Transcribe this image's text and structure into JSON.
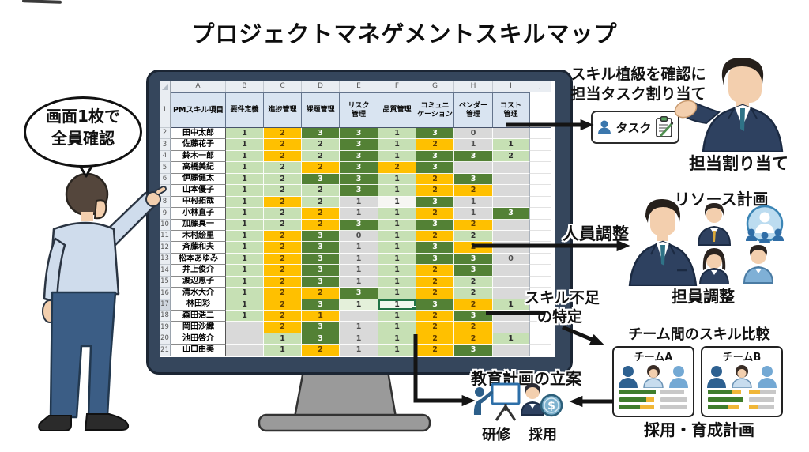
{
  "title": "プロジェクトマネゲメントスキルマップ",
  "speech_bubble": {
    "line1": "画面1枚で",
    "line2": "全員確認"
  },
  "spreadsheet": {
    "column_letters": [
      "A",
      "B",
      "C",
      "D",
      "E",
      "F",
      "G",
      "H",
      "I",
      "J"
    ],
    "header_row_number": "1",
    "headers": [
      "PMスキル項目",
      "要件定義",
      "進捗管理",
      "課題管理",
      "リスク\n管理",
      "品質管理",
      "コミュニ\nケーション",
      "ベンダー\n管理",
      "コスト\n管理"
    ],
    "rows": [
      {
        "n": "2",
        "name": "田中太郎",
        "cells": [
          [
            "1",
            "lg"
          ],
          [
            "2",
            "or"
          ],
          [
            "3",
            "dg"
          ],
          [
            "3",
            "dg"
          ],
          [
            "1",
            "lg"
          ],
          [
            "3",
            "dg"
          ],
          [
            "0",
            "gy"
          ],
          [
            "",
            "gy"
          ]
        ]
      },
      {
        "n": "3",
        "name": "佐藤花子",
        "cells": [
          [
            "1",
            "lg"
          ],
          [
            "2",
            "or"
          ],
          [
            "2",
            "lg"
          ],
          [
            "3",
            "dg"
          ],
          [
            "1",
            "lg"
          ],
          [
            "2",
            "or"
          ],
          [
            "1",
            "gy"
          ],
          [
            "1",
            "lg"
          ]
        ]
      },
      {
        "n": "4",
        "name": "鈴木一郎",
        "cells": [
          [
            "1",
            "lg"
          ],
          [
            "2",
            "or"
          ],
          [
            "2",
            "lg"
          ],
          [
            "3",
            "dg"
          ],
          [
            "1",
            "lg"
          ],
          [
            "3",
            "dg"
          ],
          [
            "3",
            "dg"
          ],
          [
            "2",
            "lg"
          ]
        ]
      },
      {
        "n": "5",
        "name": "高橋美紀",
        "cells": [
          [
            "1",
            "lg"
          ],
          [
            "2",
            "lg"
          ],
          [
            "2",
            "or"
          ],
          [
            "3",
            "dg"
          ],
          [
            "2",
            "or"
          ],
          [
            "3",
            "dg"
          ],
          [
            "",
            "gy"
          ],
          [
            "",
            "gy"
          ]
        ]
      },
      {
        "n": "6",
        "name": "伊藤健太",
        "cells": [
          [
            "1",
            "lg"
          ],
          [
            "2",
            "lg"
          ],
          [
            "3",
            "dg"
          ],
          [
            "3",
            "dg"
          ],
          [
            "1",
            "lg"
          ],
          [
            "2",
            "or"
          ],
          [
            "3",
            "dg"
          ],
          [
            "",
            "gy"
          ]
        ]
      },
      {
        "n": "7",
        "name": "山本優子",
        "cells": [
          [
            "1",
            "lg"
          ],
          [
            "2",
            "lg"
          ],
          [
            "2",
            "lg"
          ],
          [
            "3",
            "dg"
          ],
          [
            "1",
            "lg"
          ],
          [
            "2",
            "or"
          ],
          [
            "2",
            "or"
          ],
          [
            "",
            "gy"
          ]
        ]
      },
      {
        "n": "8",
        "name": "中村拓哉",
        "cells": [
          [
            "1",
            "lg"
          ],
          [
            "2",
            "or"
          ],
          [
            "2",
            "lg"
          ],
          [
            "1",
            "gy"
          ],
          [
            "1",
            "wh"
          ],
          [
            "3",
            "dg"
          ],
          [
            "1",
            "gy"
          ],
          [
            "",
            "gy"
          ]
        ]
      },
      {
        "n": "9",
        "name": "小林直子",
        "cells": [
          [
            "1",
            "lg"
          ],
          [
            "2",
            "lg"
          ],
          [
            "2",
            "or"
          ],
          [
            "1",
            "gy"
          ],
          [
            "1",
            "lg"
          ],
          [
            "2",
            "or"
          ],
          [
            "1",
            "gy"
          ],
          [
            "3",
            "dg"
          ]
        ]
      },
      {
        "n": "10",
        "name": "加藤真一",
        "cells": [
          [
            "1",
            "lg"
          ],
          [
            "2",
            "lg"
          ],
          [
            "2",
            "or"
          ],
          [
            "3",
            "dg"
          ],
          [
            "1",
            "lg"
          ],
          [
            "3",
            "dg"
          ],
          [
            "2",
            "or"
          ],
          [
            "",
            "gy"
          ]
        ]
      },
      {
        "n": "11",
        "name": "木村絵里",
        "cells": [
          [
            "1",
            "lg"
          ],
          [
            "2",
            "or"
          ],
          [
            "3",
            "dg"
          ],
          [
            "0",
            "gy"
          ],
          [
            "1",
            "lg"
          ],
          [
            "2",
            "or"
          ],
          [
            "2",
            "lg"
          ],
          [
            "",
            "gy"
          ]
        ]
      },
      {
        "n": "12",
        "name": "斉藤和夫",
        "cells": [
          [
            "1",
            "lg"
          ],
          [
            "2",
            "or"
          ],
          [
            "3",
            "dg"
          ],
          [
            "1",
            "gy"
          ],
          [
            "1",
            "lg"
          ],
          [
            "3",
            "dg"
          ],
          [
            "2",
            "or"
          ],
          [
            "",
            "gy"
          ]
        ]
      },
      {
        "n": "13",
        "name": "松本あゆみ",
        "cells": [
          [
            "1",
            "lg"
          ],
          [
            "2",
            "or"
          ],
          [
            "3",
            "dg"
          ],
          [
            "1",
            "gy"
          ],
          [
            "1",
            "lg"
          ],
          [
            "3",
            "dg"
          ],
          [
            "3",
            "dg"
          ],
          [
            "0",
            "gy"
          ]
        ]
      },
      {
        "n": "14",
        "name": "井上俊介",
        "cells": [
          [
            "1",
            "lg"
          ],
          [
            "2",
            "or"
          ],
          [
            "3",
            "dg"
          ],
          [
            "1",
            "gy"
          ],
          [
            "1",
            "lg"
          ],
          [
            "2",
            "or"
          ],
          [
            "3",
            "dg"
          ],
          [
            "",
            "gy"
          ]
        ]
      },
      {
        "n": "15",
        "name": "渡辺恵子",
        "cells": [
          [
            "1",
            "lg"
          ],
          [
            "2",
            "or"
          ],
          [
            "3",
            "dg"
          ],
          [
            "1",
            "gy"
          ],
          [
            "1",
            "lg"
          ],
          [
            "2",
            "or"
          ],
          [
            "2",
            "lg"
          ],
          [
            "",
            "gy"
          ]
        ]
      },
      {
        "n": "16",
        "name": "清水大介",
        "cells": [
          [
            "1",
            "lg"
          ],
          [
            "2",
            "or"
          ],
          [
            "2",
            "or"
          ],
          [
            "3",
            "dg"
          ],
          [
            "1",
            "lg"
          ],
          [
            "2",
            "or"
          ],
          [
            "2",
            "lg"
          ],
          [
            "",
            "gy"
          ]
        ]
      },
      {
        "n": "17",
        "name": "林田彩",
        "cells": [
          [
            "1",
            "lg"
          ],
          [
            "2",
            "or"
          ],
          [
            "3",
            "dg"
          ],
          [
            "1",
            "pl"
          ],
          [
            "1",
            "sel"
          ],
          [
            "3",
            "dg"
          ],
          [
            "2",
            "or"
          ],
          [
            "1",
            "lg"
          ]
        ]
      },
      {
        "n": "18",
        "name": "森田浩二",
        "cells": [
          [
            "1",
            "lg"
          ],
          [
            "2",
            "or"
          ],
          [
            "1",
            "or"
          ],
          [
            "",
            "gy"
          ],
          [
            "1",
            "lg"
          ],
          [
            "2",
            "or"
          ],
          [
            "3",
            "dg"
          ],
          [
            "",
            "gy"
          ]
        ]
      },
      {
        "n": "19",
        "name": "岡田沙織",
        "cells": [
          [
            "",
            "gy"
          ],
          [
            "2",
            "or"
          ],
          [
            "3",
            "dg"
          ],
          [
            "1",
            "gy"
          ],
          [
            "1",
            "lg"
          ],
          [
            "2",
            "or"
          ],
          [
            "2",
            "or"
          ],
          [
            "",
            "gy"
          ]
        ]
      },
      {
        "n": "20",
        "name": "池田啓介",
        "cells": [
          [
            "",
            "gy"
          ],
          [
            "1",
            "lg"
          ],
          [
            "3",
            "dg"
          ],
          [
            "1",
            "gy"
          ],
          [
            "1",
            "lg"
          ],
          [
            "2",
            "or"
          ],
          [
            "2",
            "or"
          ],
          [
            "1",
            "lg"
          ]
        ]
      },
      {
        "n": "21",
        "name": "山口由美",
        "cells": [
          [
            "",
            "gy"
          ],
          [
            "1",
            "lg"
          ],
          [
            "2",
            "or"
          ],
          [
            "1",
            "gy"
          ],
          [
            "1",
            "lg"
          ],
          [
            "2",
            "or"
          ],
          [
            "3",
            "dg"
          ],
          [
            "",
            "gy"
          ]
        ]
      }
    ]
  },
  "annotations": {
    "task_assign": {
      "line1": "スキル植級を確認に",
      "line2": "担当タスク割り当て",
      "box_label": "タスク",
      "caption": "担当割り当て"
    },
    "resource": {
      "title": "リソース計画",
      "arrow_label": "人員調整",
      "caption": "担員調整"
    },
    "skill_gap": {
      "line1": "スキル不足",
      "line2": "の特定"
    },
    "team_compare": {
      "title": "チーム間のスキル比較",
      "teams": [
        {
          "label": "チームA"
        },
        {
          "label": "チームB"
        }
      ],
      "caption": "採用・育成計画"
    },
    "education": {
      "title": "教育計画の立案",
      "training_label": "研修",
      "hiring_label": "採用"
    }
  },
  "colors": {
    "cell_light_green": "#c6e0b4",
    "cell_dark_green": "#538135",
    "cell_orange": "#ffc000",
    "cell_gray": "#d9d9d9",
    "selection_green": "#217346",
    "monitor_bezel": "#35465c",
    "suit_navy": "#2e4160",
    "tie_teal": "#2f7387"
  }
}
